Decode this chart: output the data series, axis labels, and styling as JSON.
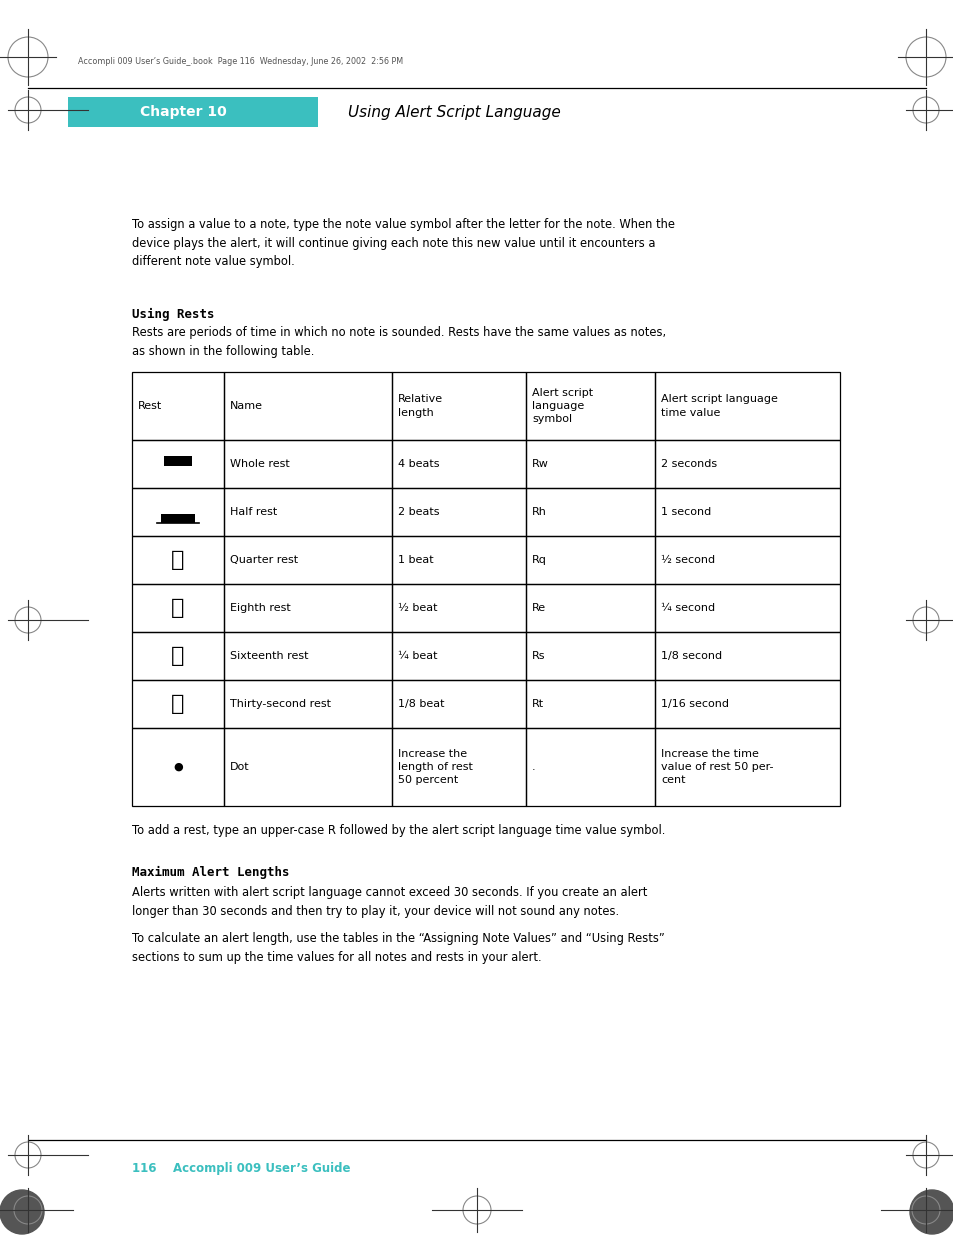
{
  "page_bg": "#ffffff",
  "header_bar_color": "#3bbfbf",
  "header_text": "Chapter 10",
  "header_subtitle": "Using Alert Script Language",
  "header_text_color": "#ffffff",
  "header_subtitle_color": "#000000",
  "top_text": "To assign a value to a note, type the note value symbol after the letter for the note. When the\ndevice plays the alert, it will continue giving each note this new value until it encounters a\ndifferent note value symbol.",
  "section1_title": "Using Rests",
  "section1_body": "Rests are periods of time in which no note is sounded. Rests have the same values as notes,\nas shown in the following table.",
  "table_headers": [
    "Rest",
    "Name",
    "Relative\nlength",
    "Alert script\nlanguage\nsymbol",
    "Alert script language\ntime value"
  ],
  "table_rows": [
    [
      "whole_rest",
      "Whole rest",
      "4 beats",
      "Rw",
      "2 seconds"
    ],
    [
      "half_rest",
      "Half rest",
      "2 beats",
      "Rh",
      "1 second"
    ],
    [
      "quarter_rest",
      "Quarter rest",
      "1 beat",
      "Rq",
      "½ second"
    ],
    [
      "eighth_rest",
      "Eighth rest",
      "½ beat",
      "Re",
      "¼ second"
    ],
    [
      "sixteenth_rest",
      "Sixteenth rest",
      "¼ beat",
      "Rs",
      "1/8 second"
    ],
    [
      "thirtysecond_rest",
      "Thirty-second rest",
      "1/8 beat",
      "Rt",
      "1/16 second"
    ],
    [
      "dot",
      "Dot",
      "Increase the\nlength of rest\n50 percent",
      ".",
      "Increase the time\nvalue of rest 50 per-\ncent"
    ]
  ],
  "after_table_text": "To add a rest, type an upper-case R followed by the alert script language time value symbol.",
  "section2_title": "Maximum Alert Lengths",
  "section2_body1": "Alerts written with alert script language cannot exceed 30 seconds. If you create an alert\nlonger than 30 seconds and then try to play it, your device will not sound any notes.",
  "section2_body2": "To calculate an alert length, use the tables in the “Assigning Note Values” and “Using Rests”\nsections to sum up the time values for all notes and rests in your alert.",
  "footer_text": "116    Accompli 009 User’s Guide",
  "footer_color": "#3bbfbf",
  "print_info": "Accompli 009 User’s Guide_.book  Page 116  Wednesday, June 26, 2002  2:56 PM"
}
